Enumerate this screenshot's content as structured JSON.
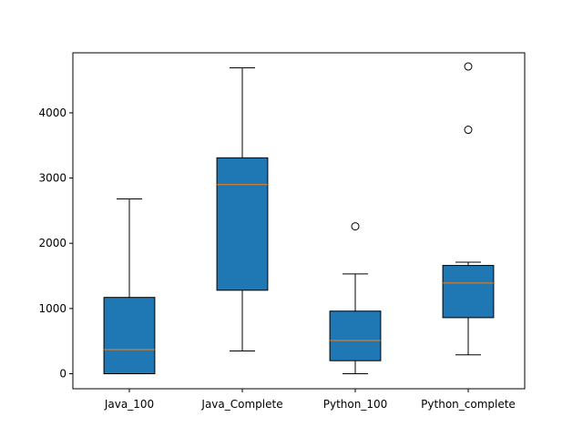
{
  "chart_data": {
    "type": "boxplot",
    "title": "",
    "xlabel": "",
    "ylabel": "",
    "ylim": [
      -230,
      4920
    ],
    "yticks": [
      0,
      1000,
      2000,
      3000,
      4000
    ],
    "ytick_labels": [
      "0",
      "1000",
      "2000",
      "3000",
      "4000"
    ],
    "grid": false,
    "colors": {
      "box_fill": "#1f77b4",
      "median": "#ff7f0e",
      "line": "#000000",
      "background": "#ffffff"
    },
    "categories": [
      "Java_100",
      "Java_Complete",
      "Python_100",
      "Python_complete"
    ],
    "boxes": [
      {
        "name": "Java_100",
        "whisker_low": 0,
        "q1": 0,
        "median": 370,
        "q3": 1170,
        "whisker_high": 2680,
        "outliers": []
      },
      {
        "name": "Java_Complete",
        "whisker_low": 350,
        "q1": 1280,
        "median": 2900,
        "q3": 3310,
        "whisker_high": 4690,
        "outliers": []
      },
      {
        "name": "Python_100",
        "whisker_low": 0,
        "q1": 200,
        "median": 510,
        "q3": 960,
        "whisker_high": 1530,
        "outliers": [
          2260
        ]
      },
      {
        "name": "Python_complete",
        "whisker_low": 290,
        "q1": 860,
        "median": 1390,
        "q3": 1660,
        "whisker_high": 1710,
        "outliers": [
          3740,
          4710
        ]
      }
    ]
  }
}
